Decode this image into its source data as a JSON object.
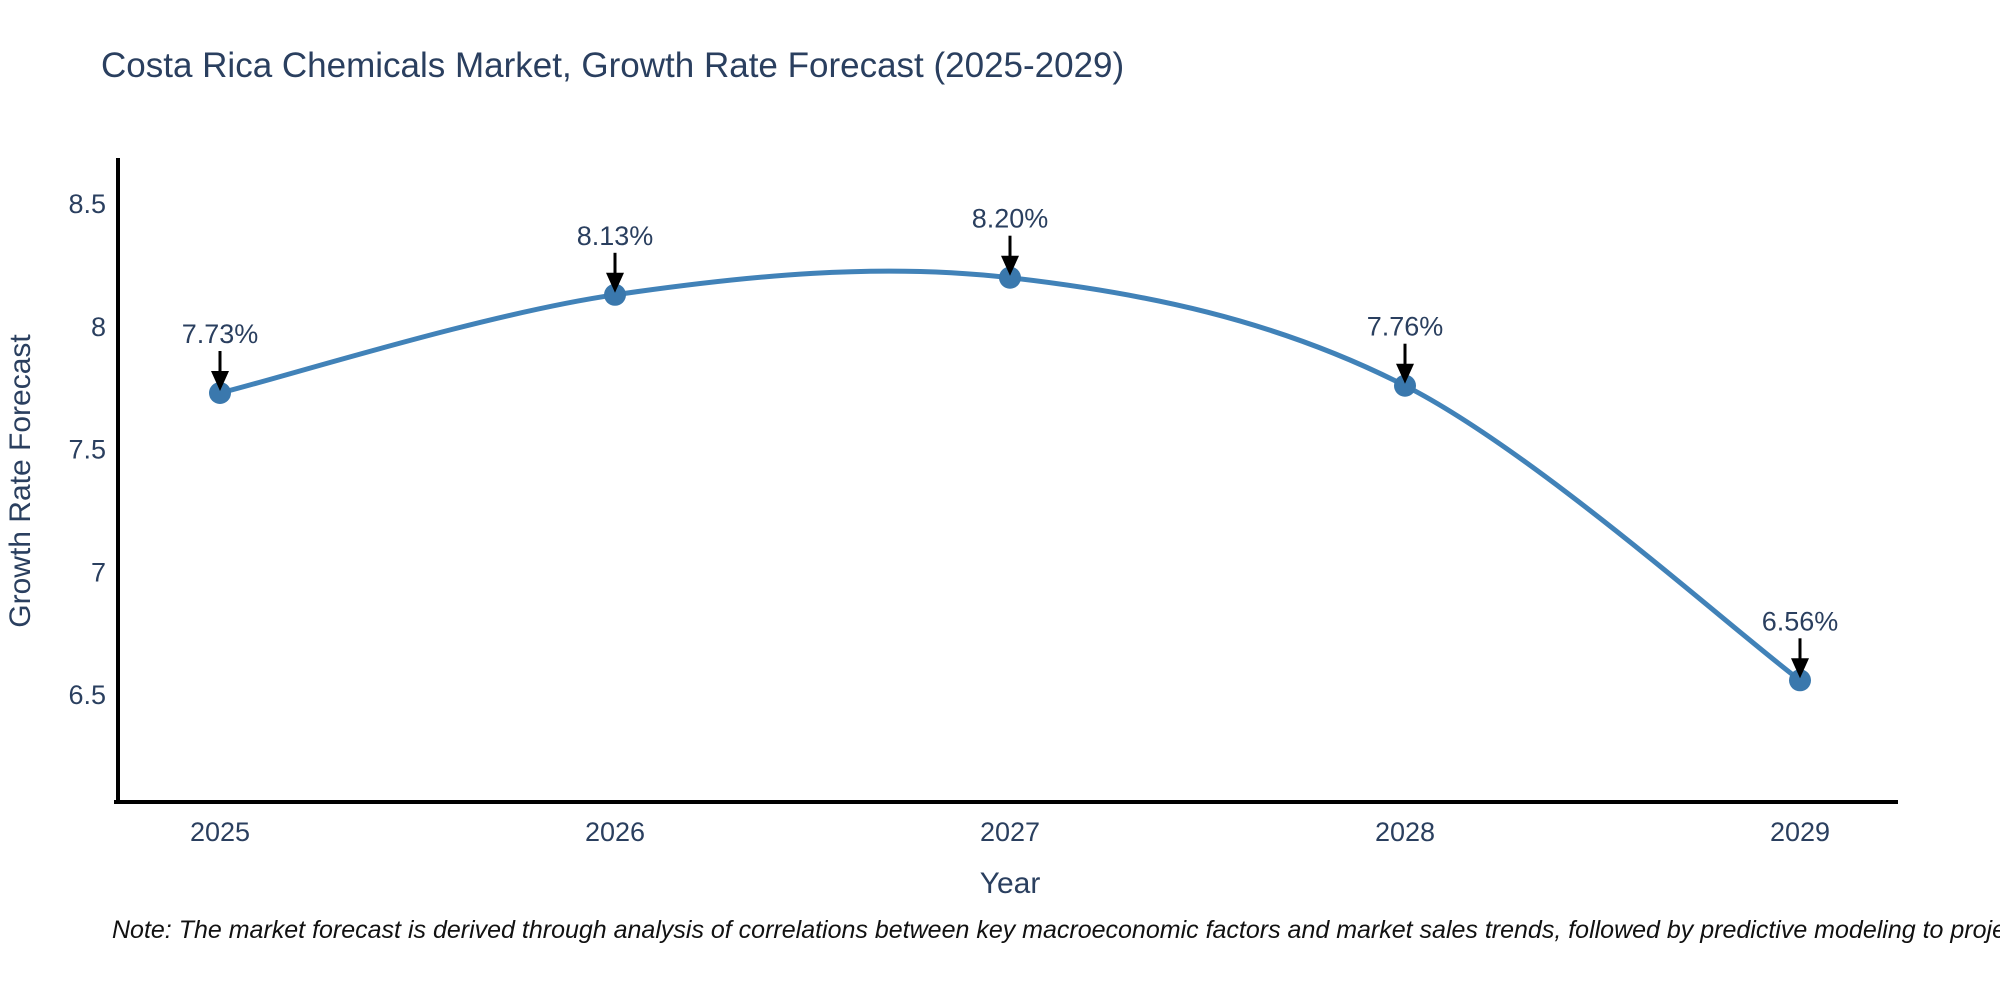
{
  "figure": {
    "title": "Costa Rica Chemicals Market, Growth Rate Forecast (2025-2029)",
    "note": "Note: The market forecast is derived through analysis of correlations between key macroeconomic factors and market sales trends, followed by predictive modeling to project future sales"
  },
  "chart_data": {
    "type": "line",
    "title": "Costa Rica Chemicals Market, Growth Rate Forecast (2025-2029)",
    "categories": [
      "2025",
      "2026",
      "2027",
      "2028",
      "2029"
    ],
    "values": [
      7.73,
      8.13,
      8.2,
      7.76,
      6.56
    ],
    "point_labels": [
      "7.73%",
      "8.13%",
      "8.20%",
      "7.76%",
      "6.56%"
    ],
    "xlabel": "Year",
    "ylabel": "Growth Rate Forecast",
    "yticks": [
      6.5,
      7,
      7.5,
      8,
      8.5
    ],
    "ytick_labels": [
      "6.5",
      "7",
      "7.5",
      "8",
      "8.5"
    ],
    "ylim": [
      6.06,
      8.69
    ],
    "grid": false,
    "legend": "none",
    "line_style": "smooth",
    "marker": "circle",
    "annotation_arrows": true,
    "colors": {
      "line": "#4182b8",
      "marker": "#3a78ad",
      "arrow": "#000000",
      "axis": "#000000",
      "text": "#2a3f5f",
      "note": "#111111",
      "background": "#ffffff"
    }
  }
}
